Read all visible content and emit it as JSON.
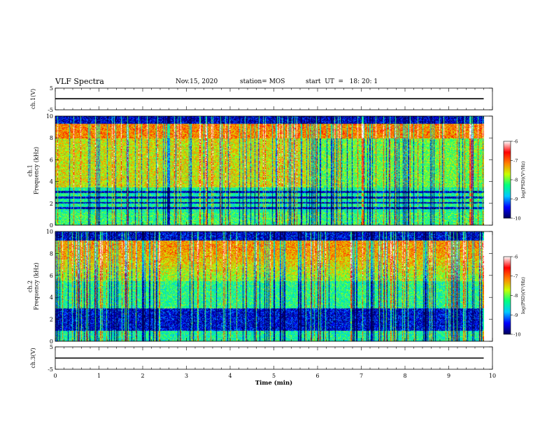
{
  "header": {
    "title": "VLF Spectra",
    "date": "Nov.15, 2020",
    "station": "station= MOS",
    "start": "start  UT  =   18: 20: 1"
  },
  "chart_data": [
    {
      "type": "line",
      "id": "ch1-waveform",
      "ylabel": "ch.1(V)",
      "ylim": [
        -5,
        5
      ],
      "y_ticks": [
        "5",
        "-5"
      ],
      "xlim": [
        0,
        10
      ],
      "series": [
        {
          "values": [
            [
              0,
              0.1
            ],
            [
              9.8,
              0.1
            ]
          ]
        }
      ]
    },
    {
      "type": "heatmap",
      "id": "ch1-spectrogram",
      "ylabel": "ch.1\nFrequency  (kHz)",
      "ylim": [
        0,
        10
      ],
      "y_ticks": [
        "0",
        "2",
        "4",
        "6",
        "8",
        "10"
      ],
      "xlim": [
        0,
        10
      ],
      "data_end_x": 9.8,
      "colorbar": {
        "label": "log(PSD)(V²/Hz)",
        "range": [
          -10,
          -6
        ],
        "ticks": [
          "-6",
          "-7",
          "-8",
          "-9",
          "-10"
        ],
        "colormap": [
          "#00005a",
          "#0000ff",
          "#00c8ff",
          "#00ff80",
          "#c8ff00",
          "#ff8000",
          "#ff0000",
          "#ffffff"
        ]
      }
    },
    {
      "type": "heatmap",
      "id": "ch2-spectrogram",
      "ylabel": "ch.2\nFrequency  (kHz)",
      "ylim": [
        0,
        10
      ],
      "y_ticks": [
        "0",
        "2",
        "4",
        "6",
        "8",
        "10"
      ],
      "xlim": [
        0,
        10
      ],
      "data_end_x": 9.8,
      "colorbar": {
        "label": "log(PSD)(V²/Hz)",
        "range": [
          -10,
          -6
        ],
        "ticks": [
          "-6",
          "-7",
          "-8",
          "-9",
          "-10"
        ],
        "colormap": [
          "#00005a",
          "#0000ff",
          "#00c8ff",
          "#00ff80",
          "#c8ff00",
          "#ff8000",
          "#ff0000",
          "#ffffff"
        ]
      }
    },
    {
      "type": "line",
      "id": "ch3-waveform",
      "ylabel": "ch.3(V)",
      "ylim": [
        -5,
        5
      ],
      "y_ticks": [
        "5",
        "-5"
      ],
      "xlim": [
        0,
        10
      ],
      "x_ticks": [
        "0",
        "1",
        "2",
        "3",
        "4",
        "5",
        "6",
        "7",
        "8",
        "9",
        "10"
      ],
      "xlabel": "Time  (min)",
      "series": [
        {
          "values": [
            [
              0,
              0
            ],
            [
              9.8,
              0
            ]
          ]
        }
      ]
    }
  ]
}
